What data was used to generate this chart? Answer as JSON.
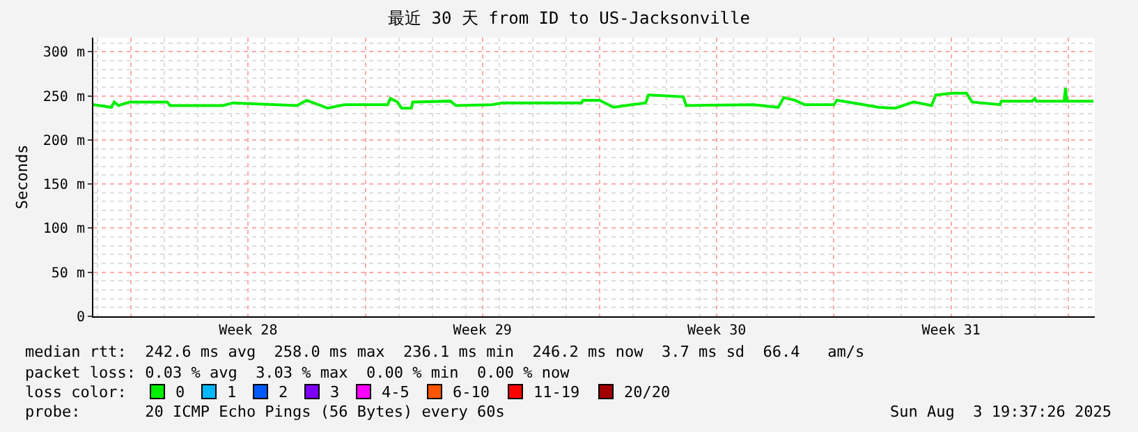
{
  "chart_data": {
    "type": "line",
    "title": "最近 30 天 from ID to US-Jacksonville",
    "ylabel": "Seconds",
    "xlim": [
      "2025-07-05T21:00",
      "2025-08-04T19:00"
    ],
    "xticks": [
      {
        "value": "2025-07-07T00:00",
        "label": null
      },
      {
        "value": "2025-07-10T12:00",
        "label": "Week 28"
      },
      {
        "value": "2025-07-14T00:00",
        "label": null
      },
      {
        "value": "2025-07-17T12:00",
        "label": "Week 29"
      },
      {
        "value": "2025-07-21T00:00",
        "label": null
      },
      {
        "value": "2025-07-24T12:00",
        "label": "Week 30"
      },
      {
        "value": "2025-07-28T00:00",
        "label": null
      },
      {
        "value": "2025-07-31T12:00",
        "label": "Week 31"
      },
      {
        "value": "2025-08-04T00:00",
        "label": null
      }
    ],
    "ylim": [
      0,
      316
    ],
    "yticks": [
      0,
      {
        "value": 50,
        "label": "50 m"
      },
      {
        "value": 100,
        "label": "100 m"
      },
      {
        "value": 150,
        "label": "150 m"
      },
      {
        "value": 200,
        "label": "200 m"
      },
      {
        "value": 250,
        "label": "250 m"
      },
      {
        "value": 300,
        "label": "300 m"
      }
    ],
    "grid": true,
    "legend": "bottom",
    "x": [
      "2025-07-05T21:00",
      "2025-07-06T10:00",
      "2025-07-06T12:00",
      "2025-07-06T15:00",
      "2025-07-06T23:00",
      "2025-07-08T02:00",
      "2025-07-08T04:00",
      "2025-07-09T18:00",
      "2025-07-10T01:00",
      "2025-07-11T23:00",
      "2025-07-12T06:00",
      "2025-07-12T21:00",
      "2025-07-13T09:00",
      "2025-07-14T16:00",
      "2025-07-14T18:00",
      "2025-07-14T23:00",
      "2025-07-15T02:00",
      "2025-07-15T09:00",
      "2025-07-15T10:00",
      "2025-07-16T13:00",
      "2025-07-16T17:00",
      "2025-07-17T19:00",
      "2025-07-18T02:00",
      "2025-07-20T11:00",
      "2025-07-20T12:00",
      "2025-07-21T00:00",
      "2025-07-21T10:00",
      "2025-07-21T23:00",
      "2025-07-22T09:00",
      "2025-07-22T11:00",
      "2025-07-23T12:00",
      "2025-07-23T14:00",
      "2025-07-25T14:00",
      "2025-07-26T08:00",
      "2025-07-26T12:00",
      "2025-07-26T20:00",
      "2025-07-27T03:00",
      "2025-07-28T00:00",
      "2025-07-28T02:00",
      "2025-07-28T14:00",
      "2025-07-29T08:00",
      "2025-07-29T20:00",
      "2025-07-30T09:00",
      "2025-07-30T22:00",
      "2025-07-31T01:00",
      "2025-07-31T13:00",
      "2025-07-31T23:00",
      "2025-08-01T03:00",
      "2025-08-01T23:00",
      "2025-08-02T00:00",
      "2025-08-02T22:00",
      "2025-08-03T00:00",
      "2025-08-03T01:00",
      "2025-08-03T21:00",
      "2025-08-03T22:00",
      "2025-08-03T23:00",
      "2025-08-04T18:00"
    ],
    "series": [
      {
        "name": "0",
        "color": "#00ee00",
        "values": [
          240,
          237,
          243,
          239,
          243,
          243,
          239,
          239,
          242,
          239,
          245,
          236,
          240,
          240,
          247,
          243,
          236,
          236,
          243,
          244,
          239,
          240,
          242,
          242,
          245,
          245,
          237,
          240,
          242,
          251,
          249,
          239,
          240,
          237,
          248,
          245,
          240,
          240,
          245,
          242,
          237,
          236,
          243,
          239,
          251,
          253,
          253,
          243,
          240,
          244,
          244,
          247,
          244,
          244,
          259,
          244,
          244
        ]
      },
      {
        "name": "1",
        "color": "#00b8ff",
        "marker": "square",
        "values": [
          null,
          null,
          null,
          null,
          null,
          null,
          null,
          null,
          null,
          null,
          null,
          null,
          null,
          null,
          null,
          null,
          null,
          null,
          null,
          null,
          null,
          null,
          null,
          null,
          null,
          null,
          null,
          null,
          null,
          null,
          null,
          null,
          null,
          null,
          null,
          null,
          null,
          null,
          null,
          null,
          null,
          null,
          null,
          null,
          null,
          null,
          null,
          null,
          null,
          null,
          null,
          null,
          null,
          null,
          null,
          null,
          null
        ]
      },
      {
        "name": "2",
        "color": "#0059ff",
        "marker": "square",
        "values": [
          null,
          null,
          null,
          null,
          null,
          null,
          null,
          null,
          null,
          null,
          null,
          null,
          null,
          null,
          null,
          null,
          null,
          null,
          null,
          null,
          null,
          null,
          null,
          null,
          null,
          null,
          null,
          null,
          null,
          null,
          null,
          null,
          null,
          null,
          null,
          null,
          null,
          null,
          null,
          null,
          null,
          null,
          null,
          null,
          null,
          null,
          null,
          null,
          null,
          null,
          null,
          null,
          null,
          null,
          null,
          null,
          null
        ]
      },
      {
        "name": "3",
        "color": "#7e00ff",
        "marker": "square",
        "values": [
          null,
          null,
          null,
          null,
          null,
          null,
          null,
          null,
          null,
          null,
          null,
          null,
          null,
          null,
          null,
          null,
          null,
          null,
          null,
          null,
          null,
          null,
          null,
          null,
          null,
          null,
          null,
          null,
          null,
          null,
          null,
          null,
          null,
          null,
          null,
          null,
          null,
          null,
          null,
          null,
          null,
          null,
          null,
          null,
          null,
          null,
          null,
          null,
          null,
          null,
          null,
          null,
          null,
          null,
          null,
          null,
          null
        ]
      },
      {
        "name": "4-5",
        "color": "#ff00ff",
        "marker": "square",
        "values": [
          null,
          null,
          null,
          null,
          null,
          null,
          null,
          null,
          null,
          null,
          null,
          null,
          null,
          null,
          null,
          null,
          null,
          null,
          null,
          null,
          null,
          null,
          null,
          null,
          null,
          null,
          null,
          null,
          null,
          null,
          null,
          null,
          null,
          null,
          null,
          null,
          null,
          null,
          null,
          null,
          null,
          null,
          null,
          null,
          null,
          null,
          null,
          null,
          null,
          null,
          null,
          null,
          null,
          null,
          null,
          null,
          null
        ]
      },
      {
        "name": "6-10",
        "color": "#ff5500",
        "marker": "square",
        "values": [
          null,
          null,
          null,
          null,
          null,
          null,
          null,
          null,
          null,
          null,
          null,
          null,
          null,
          null,
          null,
          null,
          null,
          null,
          null,
          null,
          null,
          null,
          null,
          null,
          null,
          null,
          null,
          null,
          null,
          null,
          null,
          null,
          null,
          null,
          null,
          null,
          null,
          null,
          null,
          null,
          null,
          null,
          null,
          null,
          null,
          null,
          null,
          null,
          null,
          null,
          null,
          null,
          null,
          null,
          null,
          null,
          null
        ]
      },
      {
        "name": "11-19",
        "color": "#ff0000",
        "marker": "square",
        "values": [
          null,
          null,
          null,
          null,
          null,
          null,
          null,
          null,
          null,
          null,
          null,
          null,
          null,
          null,
          null,
          null,
          null,
          null,
          null,
          null,
          null,
          null,
          null,
          null,
          null,
          null,
          null,
          null,
          null,
          null,
          null,
          null,
          null,
          null,
          null,
          null,
          null,
          null,
          null,
          null,
          null,
          null,
          null,
          null,
          null,
          null,
          null,
          null,
          null,
          null,
          null,
          null,
          null,
          null,
          null,
          null,
          null
        ]
      },
      {
        "name": "20/20",
        "color": "#a10000",
        "marker": "square",
        "values": [
          null,
          null,
          null,
          null,
          null,
          null,
          null,
          null,
          null,
          null,
          null,
          null,
          null,
          null,
          null,
          null,
          null,
          null,
          null,
          null,
          null,
          null,
          null,
          null,
          null,
          null,
          null,
          null,
          null,
          null,
          null,
          null,
          null,
          null,
          null,
          null,
          null,
          null,
          null,
          null,
          null,
          null,
          null,
          null,
          null,
          null,
          null,
          null,
          null,
          null,
          null,
          null,
          null,
          null,
          null,
          null,
          null
        ]
      }
    ],
    "annotations": [
      "median rtt:  242.6 ms avg  258.0 ms max  236.1 ms min  246.2 ms now  3.7 ms sd  66.4   am/s",
      "packet loss: 0.03 % avg  3.03 % max  0.00 % min  0.00 % now",
      "loss color:",
      "probe:       20 ICMP Echo Pings (56 Bytes) every 60s",
      "Sun Aug  3 19:37:26 2025"
    ]
  }
}
